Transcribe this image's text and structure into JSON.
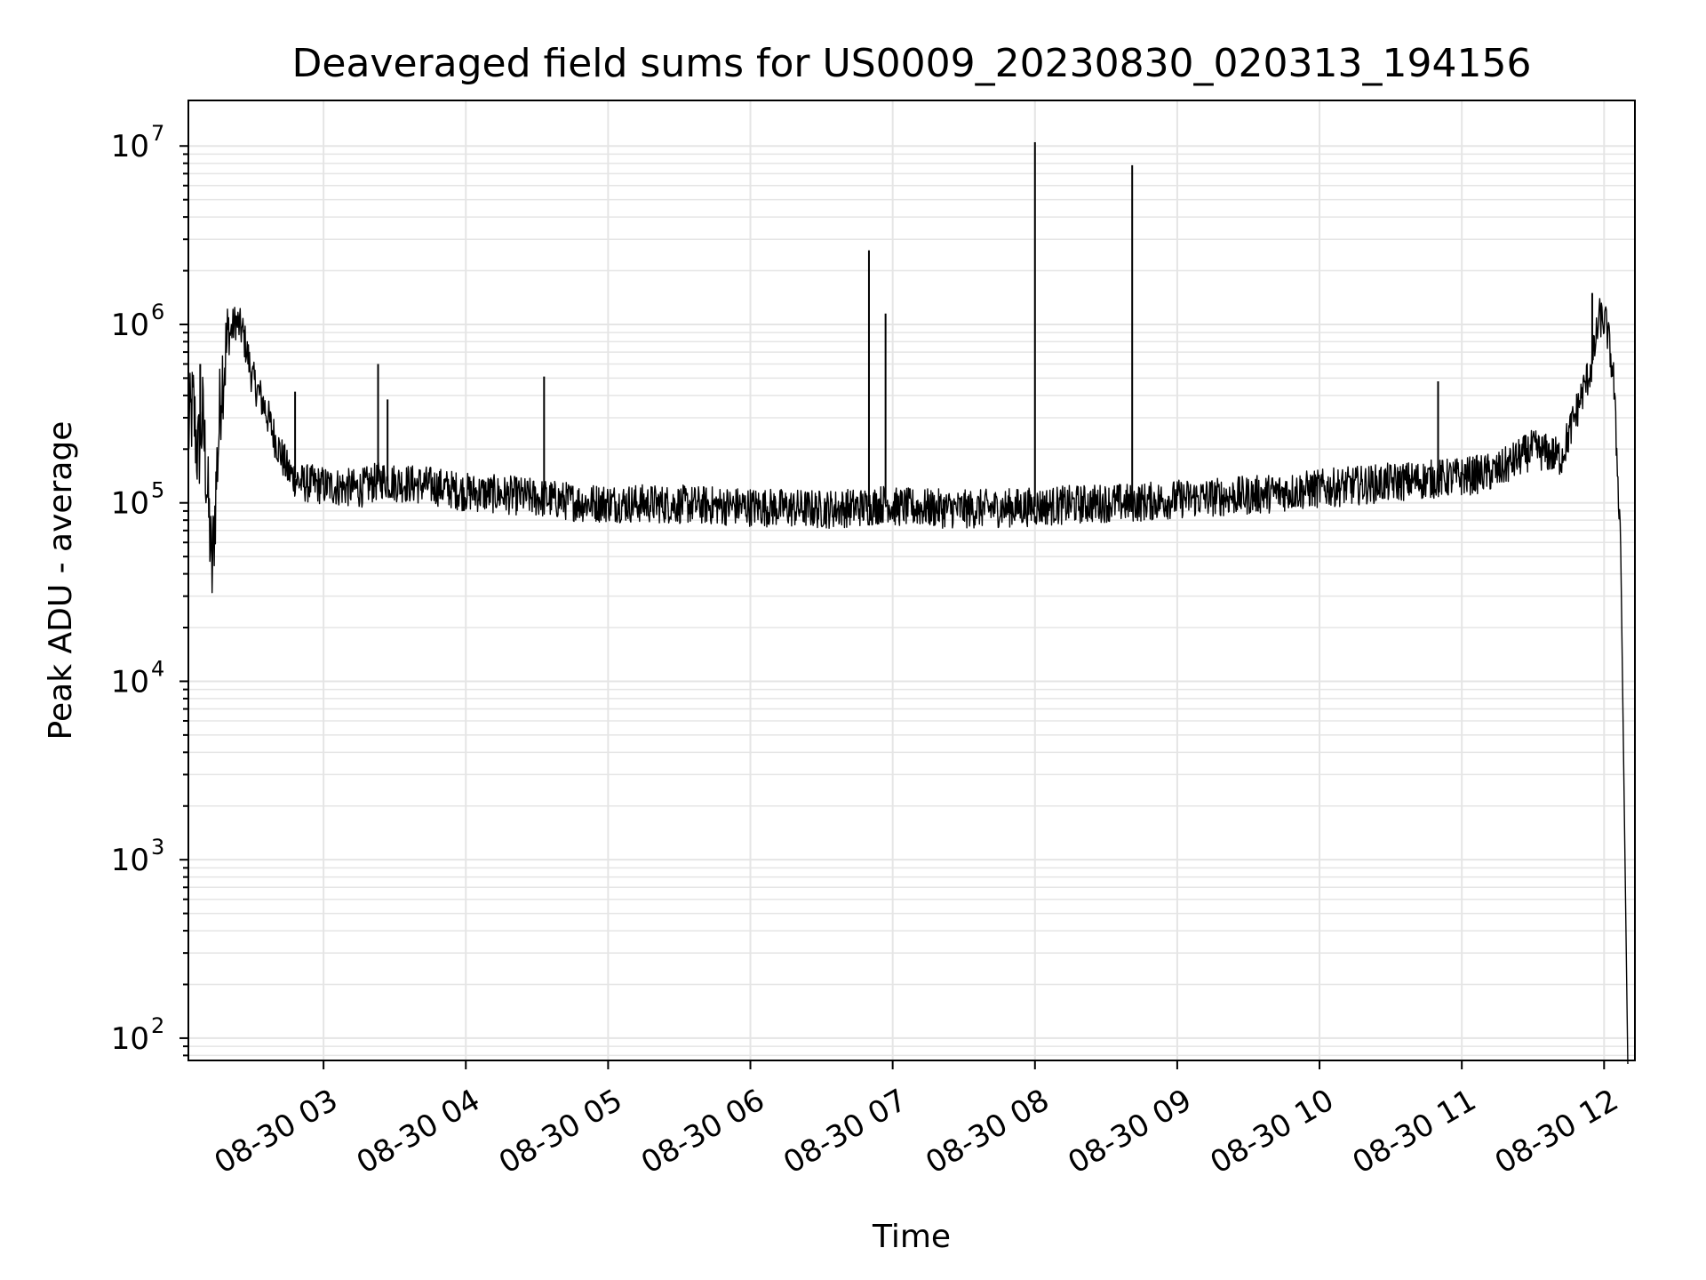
{
  "chart_data": {
    "type": "line",
    "title": "Deaveraged field sums for US0009_20230830_020313_194156",
    "xlabel": "Time",
    "ylabel": "Peak ADU - average",
    "yscale": "log",
    "ylim": [
      75,
      18000000
    ],
    "xlim": [
      "2023-08-30 02:03",
      "2023-08-30 12:13"
    ],
    "grid": "on",
    "legend": "none",
    "line_color": "#000000",
    "grid_color": "#e5e5e5",
    "x_ticks": [
      {
        "t": "2023-08-30 03:00",
        "label": "08-30 03"
      },
      {
        "t": "2023-08-30 04:00",
        "label": "08-30 04"
      },
      {
        "t": "2023-08-30 05:00",
        "label": "08-30 05"
      },
      {
        "t": "2023-08-30 06:00",
        "label": "08-30 06"
      },
      {
        "t": "2023-08-30 07:00",
        "label": "08-30 07"
      },
      {
        "t": "2023-08-30 08:00",
        "label": "08-30 08"
      },
      {
        "t": "2023-08-30 09:00",
        "label": "08-30 09"
      },
      {
        "t": "2023-08-30 10:00",
        "label": "08-30 10"
      },
      {
        "t": "2023-08-30 11:00",
        "label": "08-30 11"
      },
      {
        "t": "2023-08-30 12:00",
        "label": "08-30 12"
      }
    ],
    "y_ticks": [
      {
        "value": 100,
        "base": "10",
        "exp": "2"
      },
      {
        "value": 1000,
        "base": "10",
        "exp": "3"
      },
      {
        "value": 10000,
        "base": "10",
        "exp": "4"
      },
      {
        "value": 100000,
        "base": "10",
        "exp": "5"
      },
      {
        "value": 1000000,
        "base": "10",
        "exp": "6"
      },
      {
        "value": 10000000,
        "base": "10",
        "exp": "7"
      }
    ],
    "series": [
      {
        "x": [
          "2023-08-30 02:03",
          "2023-08-30 02:05",
          "2023-08-30 02:07",
          "2023-08-30 02:09",
          "2023-08-30 02:11",
          "2023-08-30 02:13",
          "2023-08-30 02:15",
          "2023-08-30 02:17",
          "2023-08-30 02:20",
          "2023-08-30 02:23",
          "2023-08-30 02:26",
          "2023-08-30 02:30",
          "2023-08-30 02:35",
          "2023-08-30 02:40",
          "2023-08-30 02:45",
          "2023-08-30 02:50",
          "2023-08-30 03:00",
          "2023-08-30 03:15",
          "2023-08-30 03:25",
          "2023-08-30 03:30",
          "2023-08-30 03:45",
          "2023-08-30 04:00",
          "2023-08-30 04:20",
          "2023-08-30 04:35",
          "2023-08-30 04:50",
          "2023-08-30 05:00",
          "2023-08-30 05:30",
          "2023-08-30 06:00",
          "2023-08-30 06:30",
          "2023-08-30 06:50",
          "2023-08-30 06:58",
          "2023-08-30 07:00",
          "2023-08-30 07:30",
          "2023-08-30 08:00",
          "2023-08-30 08:30",
          "2023-08-30 08:41",
          "2023-08-30 09:00",
          "2023-08-30 09:30",
          "2023-08-30 10:00",
          "2023-08-30 10:30",
          "2023-08-30 11:00",
          "2023-08-30 11:15",
          "2023-08-30 11:30",
          "2023-08-30 11:42",
          "2023-08-30 11:50",
          "2023-08-30 11:55",
          "2023-08-30 11:58",
          "2023-08-30 12:01",
          "2023-08-30 12:04",
          "2023-08-30 12:07",
          "2023-08-30 12:10"
        ],
        "y": [
          250000,
          350000,
          180000,
          300000,
          120000,
          40000,
          150000,
          500000,
          850000,
          1050000,
          900000,
          500000,
          350000,
          220000,
          150000,
          130000,
          125000,
          120000,
          135000,
          130000,
          125000,
          115000,
          110000,
          105000,
          100000,
          100000,
          98000,
          95000,
          92000,
          95000,
          100000,
          95000,
          92000,
          95000,
          100000,
          100000,
          105000,
          110000,
          120000,
          130000,
          140000,
          150000,
          200000,
          180000,
          380000,
          600000,
          1100000,
          1000000,
          500000,
          60000,
          80
        ]
      }
    ],
    "spikes": [
      {
        "x": "2023-08-30 02:08",
        "y": 600000
      },
      {
        "x": "2023-08-30 02:48",
        "y": 420000
      },
      {
        "x": "2023-08-30 03:27",
        "y": 380000
      },
      {
        "x": "2023-08-30 03:23",
        "y": 600000
      },
      {
        "x": "2023-08-30 04:33",
        "y": 510000
      },
      {
        "x": "2023-08-30 06:50",
        "y": 2600000
      },
      {
        "x": "2023-08-30 06:57",
        "y": 1150000
      },
      {
        "x": "2023-08-30 08:00",
        "y": 10500000
      },
      {
        "x": "2023-08-30 08:41",
        "y": 7800000
      },
      {
        "x": "2023-08-30 10:50",
        "y": 480000
      },
      {
        "x": "2023-08-30 11:55",
        "y": 1500000
      }
    ]
  }
}
